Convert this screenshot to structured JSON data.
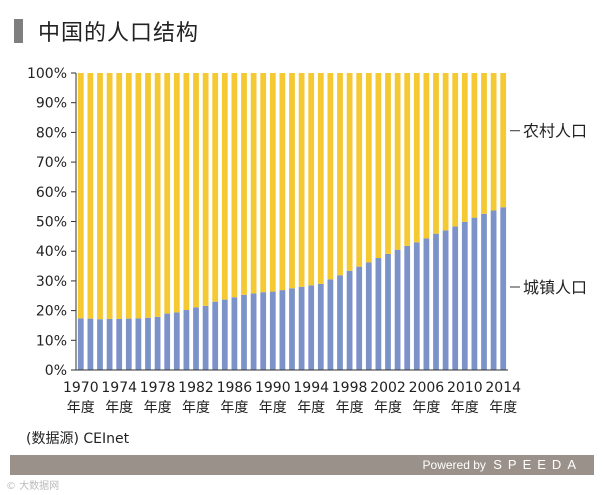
{
  "header": {
    "title": "中国的人口结构"
  },
  "chart_data": {
    "type": "bar",
    "stacked": true,
    "title": "中国的人口结构",
    "x": [
      1970,
      1971,
      1972,
      1973,
      1974,
      1975,
      1976,
      1977,
      1978,
      1979,
      1980,
      1981,
      1982,
      1983,
      1984,
      1985,
      1986,
      1987,
      1988,
      1989,
      1990,
      1991,
      1992,
      1993,
      1994,
      1995,
      1996,
      1997,
      1998,
      1999,
      2000,
      2001,
      2002,
      2003,
      2004,
      2005,
      2006,
      2007,
      2008,
      2009,
      2010,
      2011,
      2012,
      2013,
      2014
    ],
    "tick_labels": [
      {
        "year": "1970",
        "suffix": "年度"
      },
      {
        "year": "1974",
        "suffix": "年度"
      },
      {
        "year": "1978",
        "suffix": "年度"
      },
      {
        "year": "1982",
        "suffix": "年度"
      },
      {
        "year": "1986",
        "suffix": "年度"
      },
      {
        "year": "1990",
        "suffix": "年度"
      },
      {
        "year": "1994",
        "suffix": "年度"
      },
      {
        "year": "1998",
        "suffix": "年度"
      },
      {
        "year": "2002",
        "suffix": "年度"
      },
      {
        "year": "2006",
        "suffix": "年度"
      },
      {
        "year": "2010",
        "suffix": "年度"
      },
      {
        "year": "2014",
        "suffix": "年度"
      }
    ],
    "series": [
      {
        "name": "城镇人口",
        "color": "#7b93c9",
        "values": [
          17.4,
          17.3,
          17.1,
          17.2,
          17.2,
          17.3,
          17.4,
          17.6,
          17.9,
          19.0,
          19.4,
          20.2,
          21.1,
          21.6,
          23.0,
          23.7,
          24.5,
          25.3,
          25.8,
          26.2,
          26.4,
          26.9,
          27.5,
          28.0,
          28.5,
          29.0,
          30.5,
          31.9,
          33.4,
          34.8,
          36.2,
          37.7,
          39.1,
          40.5,
          41.8,
          43.0,
          44.3,
          45.9,
          47.0,
          48.3,
          49.9,
          51.3,
          52.6,
          53.7,
          54.8
        ]
      },
      {
        "name": "农村人口",
        "color": "#f5c932",
        "values": [
          82.6,
          82.7,
          82.9,
          82.8,
          82.8,
          82.7,
          82.6,
          82.4,
          82.1,
          81.0,
          80.6,
          79.8,
          78.9,
          78.4,
          77.0,
          76.3,
          75.5,
          74.7,
          74.2,
          73.8,
          73.6,
          73.1,
          72.5,
          72.0,
          71.5,
          71.0,
          69.5,
          68.1,
          66.6,
          65.2,
          63.8,
          62.3,
          60.9,
          59.5,
          58.2,
          57.0,
          55.7,
          54.1,
          53.0,
          51.7,
          50.1,
          48.7,
          47.4,
          46.3,
          45.2
        ]
      }
    ],
    "y_ticks": [
      "0%",
      "10%",
      "20%",
      "30%",
      "40%",
      "50%",
      "60%",
      "70%",
      "80%",
      "90%",
      "100%"
    ],
    "ylim": [
      0,
      100
    ],
    "legend": {
      "rural_label": "农村人口",
      "urban_label": "城镇人口",
      "placement": "right"
    },
    "grid": false
  },
  "source": "(数据源) CEInet",
  "footer": {
    "powered": "Powered by",
    "brand": "SPEEDA"
  },
  "watermark": "© 大数据网"
}
